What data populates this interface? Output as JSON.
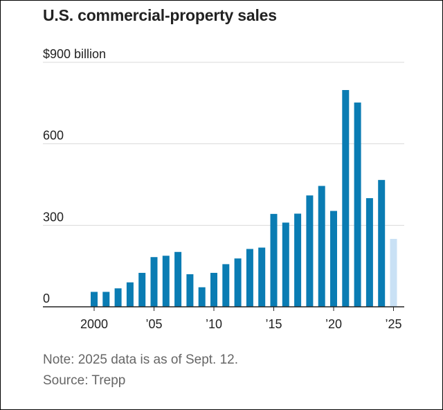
{
  "title": "U.S. commercial-property sales",
  "note": "Note: 2025 data is as of Sept. 12.",
  "source": "Source: Trepp",
  "colors": {
    "bar": "#0a7cb3",
    "bar_partial": "#c9e1f5",
    "grid": "#d9d9d9",
    "axis": "#222222",
    "text": "#222222"
  },
  "chart_data": {
    "type": "bar",
    "title": "U.S. commercial-property sales",
    "ylabel": "$ billion",
    "xlabel": "",
    "ylim": [
      0,
      900
    ],
    "y_ticks": [
      {
        "value": 0,
        "label": "0"
      },
      {
        "value": 300,
        "label": "300"
      },
      {
        "value": 600,
        "label": "600"
      },
      {
        "value": 900,
        "label": "$900 billion"
      }
    ],
    "x_ticks": [
      {
        "value": 2000,
        "label": "2000"
      },
      {
        "value": 2005,
        "label": "’05"
      },
      {
        "value": 2010,
        "label": "’10"
      },
      {
        "value": 2015,
        "label": "’15"
      },
      {
        "value": 2020,
        "label": "’20"
      },
      {
        "value": 2025,
        "label": "’25"
      }
    ],
    "categories": [
      2000,
      2001,
      2002,
      2003,
      2004,
      2005,
      2006,
      2007,
      2008,
      2009,
      2010,
      2011,
      2012,
      2013,
      2014,
      2015,
      2016,
      2017,
      2018,
      2019,
      2020,
      2021,
      2022,
      2023,
      2024,
      2025
    ],
    "values": [
      55,
      55,
      68,
      90,
      125,
      183,
      188,
      202,
      120,
      72,
      125,
      157,
      178,
      213,
      218,
      342,
      310,
      343,
      410,
      445,
      353,
      798,
      752,
      400,
      467,
      250
    ],
    "partial": [
      false,
      false,
      false,
      false,
      false,
      false,
      false,
      false,
      false,
      false,
      false,
      false,
      false,
      false,
      false,
      false,
      false,
      false,
      false,
      false,
      false,
      false,
      false,
      false,
      false,
      true
    ],
    "grid": true
  }
}
